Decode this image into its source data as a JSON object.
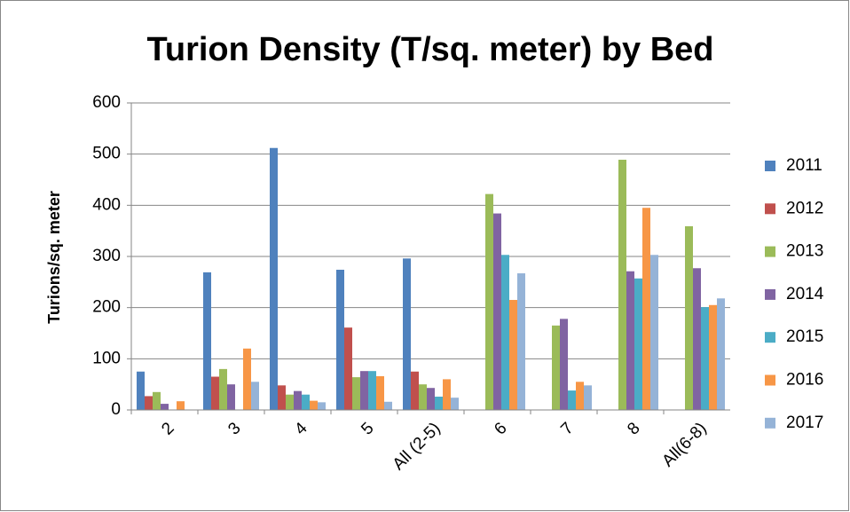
{
  "chart_data": {
    "type": "bar",
    "title": "Turion Density (T/sq. meter) by Bed",
    "y_label": "Turions/sq. meter",
    "categories": [
      "2",
      "3",
      "4",
      "5",
      "All (2-5)",
      "6",
      "7",
      "8",
      "All(6-8)"
    ],
    "series": [
      {
        "name": "2011",
        "color": "#4f81bd",
        "values": [
          75,
          269,
          512,
          274,
          296,
          null,
          null,
          null,
          null
        ]
      },
      {
        "name": "2012",
        "color": "#c0504d",
        "values": [
          27,
          65,
          48,
          161,
          75,
          null,
          null,
          null,
          null
        ]
      },
      {
        "name": "2013",
        "color": "#9bbb59",
        "values": [
          35,
          80,
          30,
          64,
          50,
          422,
          165,
          489,
          359
        ]
      },
      {
        "name": "2014",
        "color": "#8064a2",
        "values": [
          12,
          50,
          37,
          76,
          43,
          384,
          178,
          271,
          277
        ]
      },
      {
        "name": "2015",
        "color": "#4bacc6",
        "values": [
          null,
          null,
          30,
          76,
          26,
          303,
          38,
          257,
          201
        ]
      },
      {
        "name": "2016",
        "color": "#f79646",
        "values": [
          17,
          120,
          18,
          66,
          60,
          215,
          55,
          395,
          205
        ]
      },
      {
        "name": "2017",
        "color": "#95b3d7",
        "values": [
          null,
          55,
          15,
          16,
          24,
          267,
          48,
          303,
          218
        ]
      }
    ],
    "ylim": [
      0,
      600
    ],
    "yticks": [
      0,
      100,
      200,
      300,
      400,
      500,
      600
    ],
    "grid": true,
    "legend": "right"
  }
}
